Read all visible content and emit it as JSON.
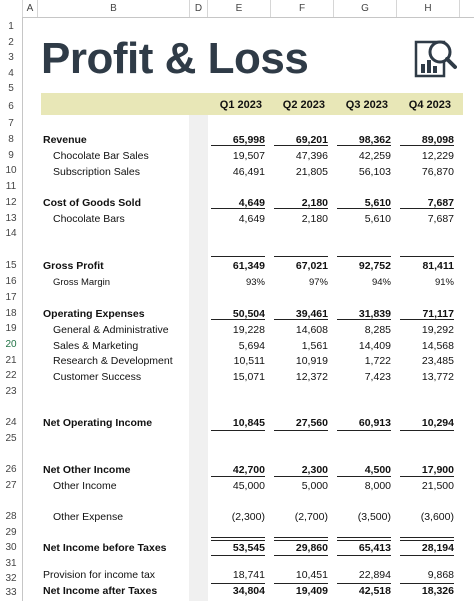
{
  "columns": [
    "A",
    "B",
    "D",
    "E",
    "F",
    "G",
    "H"
  ],
  "rows": [
    "1",
    "2",
    "3",
    "4",
    "5",
    "6",
    "7",
    "8",
    "9",
    "10",
    "11",
    "12",
    "13",
    "14",
    "15",
    "16",
    "17",
    "18",
    "19",
    "20",
    "21",
    "22",
    "23",
    "24",
    "25",
    "26",
    "27",
    "28",
    "29",
    "30",
    "31",
    "32",
    "33"
  ],
  "title": "Profit & Loss",
  "quarters": [
    "Q1 2023",
    "Q2 2023",
    "Q3 2023",
    "Q4 2023"
  ],
  "lines": [
    {
      "label": "Revenue",
      "values": [
        "65,998",
        "69,201",
        "98,362",
        "89,098"
      ]
    },
    {
      "label": "Chocolate Bar Sales",
      "values": [
        "19,507",
        "47,396",
        "42,259",
        "12,229"
      ]
    },
    {
      "label": "Subscription Sales",
      "values": [
        "46,491",
        "21,805",
        "56,103",
        "76,870"
      ]
    },
    {
      "label": "Cost of Goods Sold",
      "values": [
        "4,649",
        "2,180",
        "5,610",
        "7,687"
      ]
    },
    {
      "label": "Chocolate Bars",
      "values": [
        "4,649",
        "2,180",
        "5,610",
        "7,687"
      ]
    },
    {
      "label": "Gross Profit",
      "values": [
        "61,349",
        "67,021",
        "92,752",
        "81,411"
      ]
    },
    {
      "label": "Gross Margin",
      "values": [
        "93%",
        "97%",
        "94%",
        "91%"
      ]
    },
    {
      "label": "Operating Expenses",
      "values": [
        "50,504",
        "39,461",
        "31,839",
        "71,117"
      ]
    },
    {
      "label": "General & Administrative",
      "values": [
        "19,228",
        "14,608",
        "8,285",
        "19,292"
      ]
    },
    {
      "label": "Sales & Marketing",
      "values": [
        "5,694",
        "1,561",
        "14,409",
        "14,568"
      ]
    },
    {
      "label": "Research & Development",
      "values": [
        "10,511",
        "10,919",
        "1,722",
        "23,485"
      ]
    },
    {
      "label": "Customer Success",
      "values": [
        "15,071",
        "12,372",
        "7,423",
        "13,772"
      ]
    },
    {
      "label": "Net Operating Income",
      "values": [
        "10,845",
        "27,560",
        "60,913",
        "10,294"
      ]
    },
    {
      "label": "Net Other Income",
      "values": [
        "42,700",
        "2,300",
        "4,500",
        "17,900"
      ]
    },
    {
      "label": "Other Income",
      "values": [
        "45,000",
        "5,000",
        "8,000",
        "21,500"
      ]
    },
    {
      "label": "Other Expense",
      "values": [
        "(2,300)",
        "(2,700)",
        "(3,500)",
        "(3,600)"
      ]
    },
    {
      "label": "Net Income before Taxes",
      "values": [
        "53,545",
        "29,860",
        "65,413",
        "28,194"
      ]
    },
    {
      "label": "Provision for income tax",
      "values": [
        "18,741",
        "10,451",
        "22,894",
        "9,868"
      ]
    },
    {
      "label": "Net Income after Taxes",
      "values": [
        "34,804",
        "19,409",
        "42,518",
        "18,326"
      ]
    }
  ]
}
